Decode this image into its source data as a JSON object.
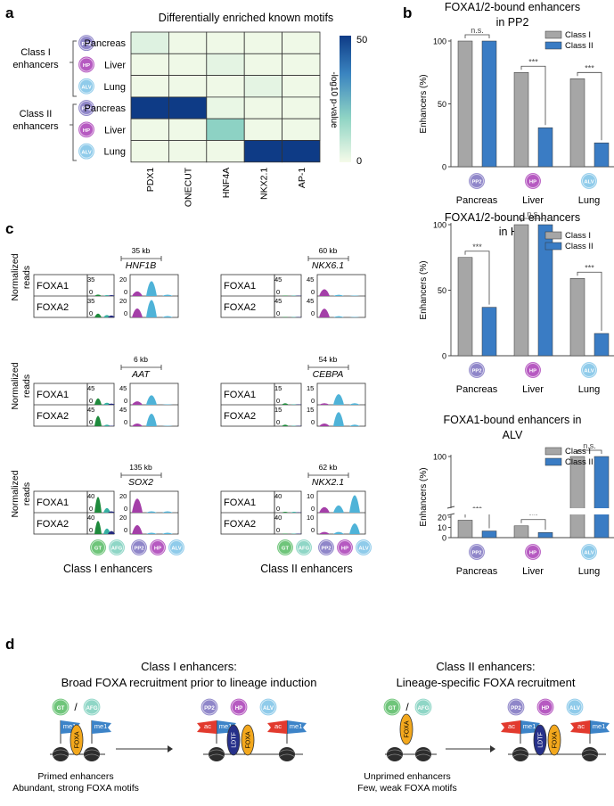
{
  "panel_labels": {
    "a": "a",
    "b": "b",
    "c": "c",
    "d": "d"
  },
  "panel_a": {
    "title": "Differentially enriched known motifs",
    "group_labels": [
      [
        "Class I",
        "enhancers"
      ],
      [
        "Class II",
        "enhancers"
      ]
    ],
    "row_labels": [
      "Pancreas",
      "Liver",
      "Lung",
      "Pancreas",
      "Liver",
      "Lung"
    ],
    "row_badges": [
      "PP2",
      "HP",
      "ALV",
      "PP2",
      "HP",
      "ALV"
    ],
    "columns": [
      "PDX1",
      "ONECUT",
      "HNF4A",
      "NKX2.1",
      "AP-1"
    ],
    "colorbar_label": "-log10 p-value",
    "colorbar_max": "50",
    "colorbar_min": "0"
  },
  "chart_data": [
    {
      "type": "heatmap",
      "title": "Differentially enriched known motifs",
      "rows": [
        "Class I Pancreas",
        "Class I Liver",
        "Class I Lung",
        "Class II Pancreas",
        "Class II Liver",
        "Class II Lung"
      ],
      "columns": [
        "PDX1",
        "ONECUT",
        "HNF4A",
        "NKX2.1",
        "AP-1"
      ],
      "values": [
        [
          4,
          1,
          1,
          1,
          1
        ],
        [
          1,
          1,
          3,
          1,
          1
        ],
        [
          1,
          1,
          1,
          3,
          1
        ],
        [
          50,
          50,
          2,
          1,
          1
        ],
        [
          1,
          1,
          18,
          1,
          1
        ],
        [
          1,
          1,
          1,
          50,
          50
        ]
      ],
      "vmin": 0,
      "vmax": 50,
      "colorbar_label": "-log10 p-value"
    },
    {
      "type": "bar",
      "title": "FOXA1/2-bound enhancers in PP2",
      "categories": [
        "Pancreas",
        "Liver",
        "Lung"
      ],
      "badges": [
        "PP2",
        "HP",
        "ALV"
      ],
      "series": [
        {
          "name": "Class I",
          "values": [
            100,
            75,
            70
          ]
        },
        {
          "name": "Class II",
          "values": [
            100,
            31,
            19
          ]
        }
      ],
      "annotations": [
        "n.s.",
        "***",
        "***"
      ],
      "ylabel": "Enhancers (%)",
      "ylim": [
        0,
        100
      ],
      "yticks": [
        0,
        50,
        100
      ]
    },
    {
      "type": "bar",
      "title": "FOXA1/2-bound enhancers in HP",
      "categories": [
        "Pancreas",
        "Liver",
        "Lung"
      ],
      "badges": [
        "PP2",
        "HP",
        "ALV"
      ],
      "series": [
        {
          "name": "Class I",
          "values": [
            75,
            100,
            59
          ]
        },
        {
          "name": "Class II",
          "values": [
            37,
            100,
            17
          ]
        }
      ],
      "annotations": [
        "***",
        "n.s.",
        "***"
      ],
      "ylabel": "Enhancers (%)",
      "ylim": [
        0,
        100
      ],
      "yticks": [
        0,
        50,
        100
      ]
    },
    {
      "type": "bar",
      "title": "FOXA1-bound enhancers in ALV",
      "categories": [
        "Pancreas",
        "Liver",
        "Lung"
      ],
      "badges": [
        "PP2",
        "HP",
        "ALV"
      ],
      "series": [
        {
          "name": "Class I",
          "values": [
            17,
            11.5,
            100
          ]
        },
        {
          "name": "Class II",
          "values": [
            6.5,
            5,
            100
          ]
        }
      ],
      "annotations": [
        "***",
        "***",
        "n.s."
      ],
      "ylabel": "Enhancers (%)",
      "axis_break": [
        20,
        80
      ],
      "yticks": [
        0,
        10,
        20,
        100
      ]
    },
    {
      "type": "line",
      "title": "Normalized read tracks",
      "tracks": [
        {
          "gene": "HNF1B",
          "scale_kb": "35 kb",
          "class": "Class I",
          "ymax": [
            35,
            20
          ],
          "foxa1": [
            2,
            1,
            1,
            5,
            17,
            1
          ],
          "foxa2": [
            7,
            4,
            3,
            10,
            20,
            1
          ]
        },
        {
          "gene": "NKX6.1",
          "scale_kb": "60 kb",
          "class": "Class II",
          "ymax": [
            45,
            45
          ],
          "foxa1": [
            0,
            0,
            0,
            17,
            2,
            0
          ],
          "foxa2": [
            0,
            0,
            0,
            22,
            2,
            0
          ]
        },
        {
          "gene": "AAT",
          "scale_kb": "6 kb",
          "class": "Class I",
          "ymax": [
            45,
            45
          ],
          "foxa1": [
            16,
            4,
            2,
            8,
            24,
            0
          ],
          "foxa2": [
            26,
            3,
            0,
            6,
            32,
            0
          ]
        },
        {
          "gene": "CEBPA",
          "scale_kb": "54 kb",
          "class": "Class II",
          "ymax": [
            15,
            15
          ],
          "foxa1": [
            1,
            0,
            0,
            1,
            9,
            1
          ],
          "foxa2": [
            1,
            0,
            0,
            2,
            12,
            1
          ]
        },
        {
          "gene": "SOX2",
          "scale_kb": "135 kb",
          "class": "Class I",
          "ymax": [
            40,
            20
          ],
          "foxa1": [
            36,
            10,
            2,
            16,
            1,
            1
          ],
          "foxa2": [
            30,
            12,
            6,
            10,
            1,
            1
          ]
        },
        {
          "gene": "NKX2.1",
          "scale_kb": "62 kb",
          "class": "Class II",
          "ymax": [
            40,
            10
          ],
          "foxa1": [
            1,
            1,
            0,
            3,
            4,
            20
          ],
          "foxa2": [
            0,
            0,
            0,
            1,
            1,
            6
          ]
        }
      ]
    }
  ],
  "panel_b": {
    "titles": [
      [
        "FOXA1/2-bound enhancers",
        "in PP2"
      ],
      [
        "FOXA1/2-bound enhancers",
        "in HP"
      ],
      [
        "FOXA1-bound enhancers in",
        "ALV"
      ]
    ],
    "ylabel": "Enhancers (%)",
    "legend": [
      "Class I",
      "Class II"
    ],
    "colors": {
      "class1": "#a6a6a6",
      "class2": "#3a7cc4"
    }
  },
  "panel_c": {
    "ylabel": [
      "Normalized",
      "reads"
    ],
    "track_labels": [
      "FOXA1",
      "FOXA2"
    ],
    "stage_badges_left": [
      "GT",
      "AFG"
    ],
    "stage_badges_right": [
      "PP2",
      "HP",
      "ALV"
    ],
    "footer": [
      "Class I enhancers",
      "Class II enhancers"
    ],
    "colors": {
      "gt": "#1e8a3c",
      "afg": "#35b0a0",
      "pp2": "#242a7e",
      "hp": "#a43fa8",
      "alv": "#4fb3d8"
    }
  },
  "panel_d": {
    "class1_title": [
      "Class I enhancers:",
      "Broad FOXA recruitment prior to lineage induction"
    ],
    "class2_title": [
      "Class II enhancers:",
      "Lineage-specific FOXA recruitment"
    ],
    "stage_left": [
      "GT",
      "/",
      "AFG"
    ],
    "stage_right": [
      "PP2",
      "HP",
      "ALV"
    ],
    "marks": {
      "me1": "me1",
      "ac": "ac",
      "foxa": "FOXA",
      "ldtf": "LDTF"
    },
    "class1_caption": [
      "Primed enhancers",
      "Abundant, strong FOXA motifs"
    ],
    "class2_caption": [
      "Unprimed enhancers",
      "Few, weak FOXA motifs"
    ]
  },
  "badge_colors": {
    "PP2": "#8f86c9",
    "HP": "#b65ac1",
    "ALV": "#8fcbea",
    "GT": "#6fc57a",
    "AFG": "#8fd6c6"
  }
}
